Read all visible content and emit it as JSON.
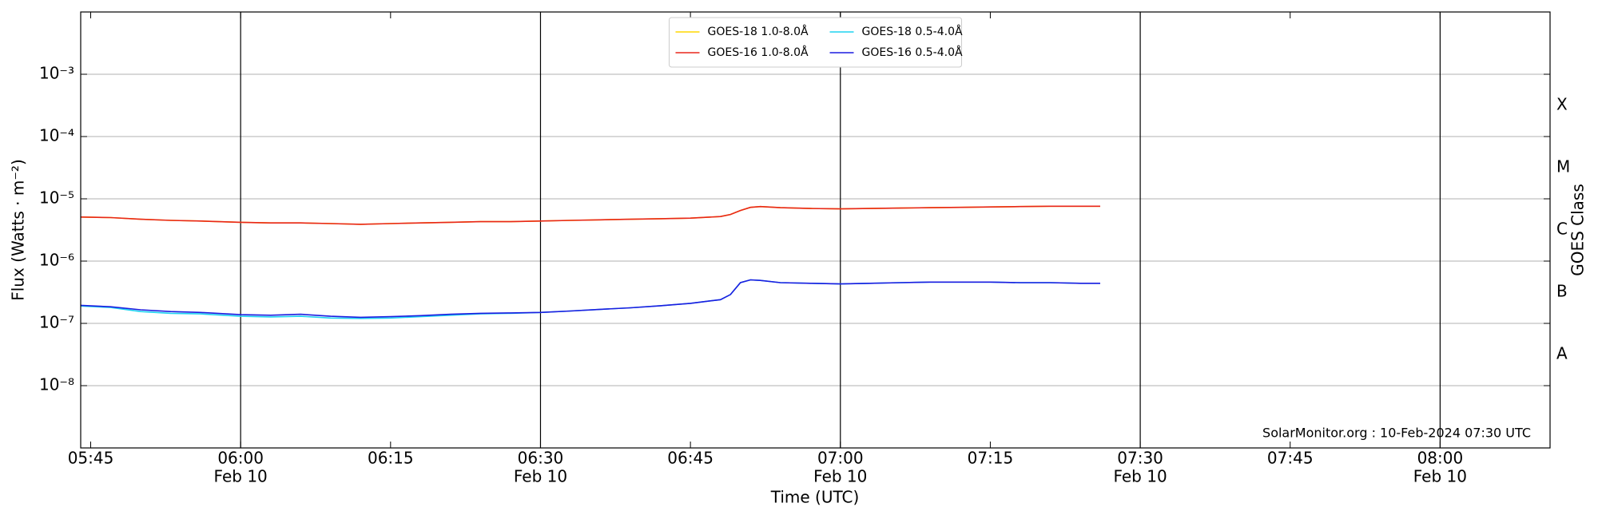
{
  "chart_data": {
    "type": "line",
    "ylog": true,
    "grid": true,
    "xlabel": "Time (UTC)",
    "ylabel": "Flux (Watts · m⁻²)",
    "y2label": "GOES Class",
    "annotation": "SolarMonitor.org : 10-Feb-2024 07:30 UTC",
    "legend_loc": "upper center",
    "xlim": [
      "05:44",
      "08:11"
    ],
    "xticks": [
      "05:45",
      "06:00",
      "06:15",
      "06:30",
      "06:45",
      "07:00",
      "07:15",
      "07:30",
      "07:45",
      "08:00"
    ],
    "xtick_dates": [
      null,
      "Feb 10",
      null,
      "Feb 10",
      null,
      "Feb 10",
      null,
      "Feb 10",
      null,
      "Feb 10"
    ],
    "vlines": [
      "06:00",
      "06:30",
      "07:00",
      "07:30",
      "08:00"
    ],
    "ylim": [
      1e-09,
      0.01
    ],
    "yticks": [
      {
        "value": 1e-08,
        "label": "10⁻⁸"
      },
      {
        "value": 1e-07,
        "label": "10⁻⁷"
      },
      {
        "value": 1e-06,
        "label": "10⁻⁶"
      },
      {
        "value": 1e-05,
        "label": "10⁻⁵"
      },
      {
        "value": 0.0001,
        "label": "10⁻⁴"
      },
      {
        "value": 0.001,
        "label": "10⁻³"
      }
    ],
    "y2lim": [
      1e-09,
      0.01
    ],
    "y2ticks": [
      {
        "value": 3.162e-08,
        "label": "A"
      },
      {
        "value": 3.162e-07,
        "label": "B"
      },
      {
        "value": 3.162e-06,
        "label": "C"
      },
      {
        "value": 3.162e-05,
        "label": "M"
      },
      {
        "value": 0.0003162,
        "label": "X"
      }
    ],
    "x": [
      "05:44",
      "05:47",
      "05:50",
      "05:53",
      "05:56",
      "06:00",
      "06:03",
      "06:06",
      "06:09",
      "06:12",
      "06:15",
      "06:18",
      "06:21",
      "06:24",
      "06:27",
      "06:30",
      "06:33",
      "06:36",
      "06:39",
      "06:42",
      "06:45",
      "06:48",
      "06:49",
      "06:50",
      "06:51",
      "06:52",
      "06:54",
      "06:57",
      "07:00",
      "07:03",
      "07:06",
      "07:09",
      "07:12",
      "07:15",
      "07:18",
      "07:21",
      "07:24",
      "07:26"
    ],
    "series": [
      {
        "name": "GOES-18 1.0-8.0Å",
        "color": "#ffd700",
        "values": [
          5.1e-06,
          5e-06,
          4.7e-06,
          4.5e-06,
          4.4e-06,
          4.2e-06,
          4.1e-06,
          4.1e-06,
          4e-06,
          3.9e-06,
          4e-06,
          4.1e-06,
          4.2e-06,
          4.3e-06,
          4.3e-06,
          4.4e-06,
          4.5e-06,
          4.6e-06,
          4.7e-06,
          4.8e-06,
          4.9e-06,
          5.2e-06,
          5.6e-06,
          6.5e-06,
          7.3e-06,
          7.5e-06,
          7.2e-06,
          7e-06,
          6.9e-06,
          7e-06,
          7.1e-06,
          7.2e-06,
          7.3e-06,
          7.4e-06,
          7.5e-06,
          7.6e-06,
          7.6e-06,
          7.6e-06
        ]
      },
      {
        "name": "GOES-16 1.0-8.0Å",
        "color": "#e8261b",
        "values": [
          5.1e-06,
          5e-06,
          4.7e-06,
          4.5e-06,
          4.4e-06,
          4.2e-06,
          4.1e-06,
          4.1e-06,
          4e-06,
          3.9e-06,
          4e-06,
          4.1e-06,
          4.2e-06,
          4.3e-06,
          4.3e-06,
          4.4e-06,
          4.5e-06,
          4.6e-06,
          4.7e-06,
          4.8e-06,
          4.9e-06,
          5.2e-06,
          5.6e-06,
          6.5e-06,
          7.3e-06,
          7.5e-06,
          7.2e-06,
          7e-06,
          6.9e-06,
          7e-06,
          7.1e-06,
          7.2e-06,
          7.3e-06,
          7.4e-06,
          7.5e-06,
          7.6e-06,
          7.6e-06,
          7.6e-06
        ]
      },
      {
        "name": "GOES-18 0.5-4.0Å",
        "color": "#1fd3f0",
        "values": [
          1.9e-07,
          1.8e-07,
          1.55e-07,
          1.45e-07,
          1.42e-07,
          1.3e-07,
          1.27e-07,
          1.3e-07,
          1.22e-07,
          1.2e-07,
          1.22e-07,
          1.28e-07,
          1.35e-07,
          1.42e-07,
          1.45e-07,
          1.5e-07,
          1.58e-07,
          1.68e-07,
          1.78e-07,
          1.92e-07,
          2.1e-07,
          2.4e-07,
          2.9e-07,
          4.5e-07,
          5e-07,
          4.9e-07,
          4.5e-07,
          4.4e-07,
          4.3e-07,
          4.4e-07,
          4.5e-07,
          4.6e-07,
          4.6e-07,
          4.6e-07,
          4.5e-07,
          4.5e-07,
          4.4e-07,
          4.4e-07
        ]
      },
      {
        "name": "GOES-16 0.5-4.0Å",
        "color": "#1c1ce0",
        "values": [
          1.95e-07,
          1.85e-07,
          1.65e-07,
          1.55e-07,
          1.5e-07,
          1.38e-07,
          1.35e-07,
          1.4e-07,
          1.3e-07,
          1.25e-07,
          1.28e-07,
          1.33e-07,
          1.4e-07,
          1.45e-07,
          1.47e-07,
          1.5e-07,
          1.58e-07,
          1.68e-07,
          1.78e-07,
          1.92e-07,
          2.1e-07,
          2.4e-07,
          2.9e-07,
          4.5e-07,
          5e-07,
          4.9e-07,
          4.5e-07,
          4.4e-07,
          4.3e-07,
          4.4e-07,
          4.5e-07,
          4.6e-07,
          4.6e-07,
          4.6e-07,
          4.5e-07,
          4.5e-07,
          4.4e-07,
          4.4e-07
        ]
      }
    ]
  }
}
